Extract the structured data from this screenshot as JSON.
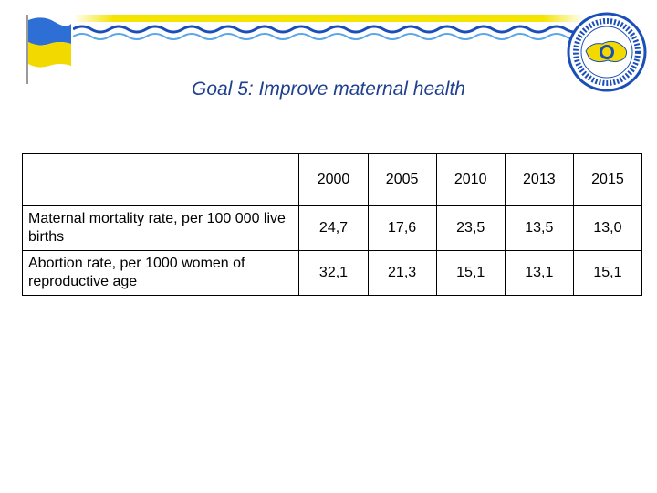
{
  "title": "Goal 5: Improve maternal health",
  "table": {
    "corner": "",
    "years": [
      "2000",
      "2005",
      "2010",
      "2013",
      "2015"
    ],
    "rows": [
      {
        "label": "Maternal mortality rate, per 100 000 live births",
        "values": [
          "24,7",
          "17,6",
          "23,5",
          "13,5",
          "13,0"
        ]
      },
      {
        "label": "Abortion rate, per 1000 women of reproductive age",
        "values": [
          "32,1",
          "21,3",
          "15,1",
          "13,1",
          "15,1"
        ]
      }
    ]
  },
  "colors": {
    "title": "#1f3f8f",
    "banner_blue": "#1a4fb8",
    "banner_yellow": "#f5e400",
    "flag_blue": "#2e6fd6",
    "flag_yellow": "#f2d900"
  }
}
